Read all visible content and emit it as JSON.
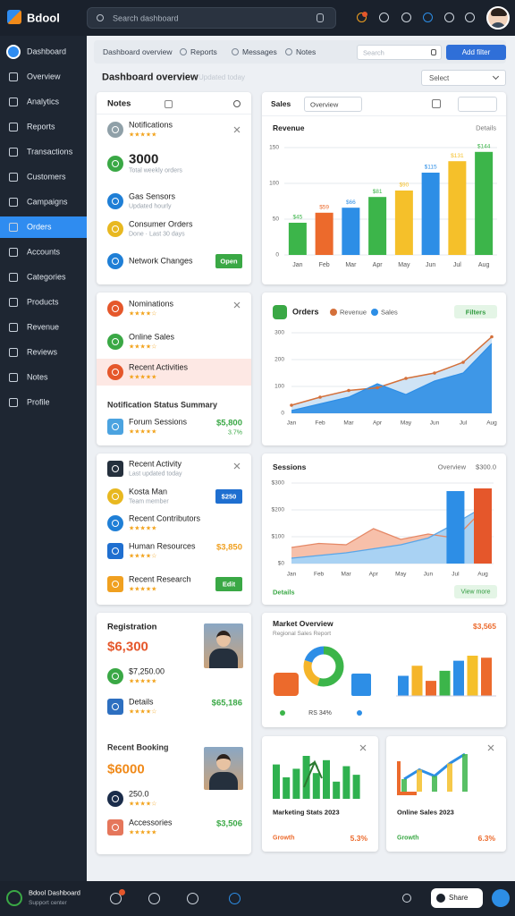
{
  "topbar": {
    "brand": "Bdool",
    "search": "Search dashboard"
  },
  "sidebar": {
    "items": [
      "Dashboard",
      "Overview",
      "Analytics",
      "Reports",
      "Transactions",
      "Customers",
      "Campaigns",
      "Orders",
      "Accounts",
      "Categories",
      "Products",
      "Revenue",
      "Reviews",
      "Notes",
      "Profile"
    ],
    "active": 7
  },
  "toolbar": {
    "tabs": [
      "Dashboard overview",
      "Reports",
      "Messages",
      "Notes"
    ],
    "input": "Search",
    "button": "Add filter",
    "select": "Select"
  },
  "heading": {
    "title": "Dashboard overview",
    "subtitle": "Updated today"
  },
  "cards": [
    {
      "header": "Notes",
      "items": [
        {
          "title": "Notifications",
          "sub": "★★★★★",
          "color": "#8fa0a8"
        },
        {
          "title": "3000",
          "sub": "Total weekly orders",
          "color": "#3aa845",
          "big": true
        },
        {
          "title": "Gas Sensors",
          "sub": "Updated hourly",
          "color": "#1f7fd6"
        },
        {
          "title": "Consumer Orders",
          "sub": "Done · Last 30 days",
          "color": "#e8b820"
        },
        {
          "title": "Network Changes",
          "badge": "Open",
          "badge_color": "#3aa845",
          "color": "#1f7fd6"
        }
      ]
    },
    {
      "items": [
        {
          "title": "Nominations",
          "sub": "★★★★☆",
          "color": "#e5572b"
        },
        {
          "title": "Online Sales",
          "sub": "★★★★☆",
          "color": "#3aa845"
        },
        {
          "title": "Recent Activities",
          "sub": "★★★★★",
          "color": "#e5572b",
          "highlight": true
        }
      ],
      "section": "Notification Status Summary",
      "items2": [
        {
          "title": "Forum Sessions",
          "sub": "★★★★★",
          "value": "$5,800",
          "value2": "3.7%",
          "value_color": "#3aa845",
          "color": "#4ba3e0",
          "square": true
        }
      ]
    },
    {
      "items": [
        {
          "title": "Recent Activity",
          "sub": "Last updated today",
          "color": "#25303d",
          "square": true
        },
        {
          "title": "Kosta Man",
          "sub": "Team member",
          "badge": "$250",
          "badge_color": "#1f6fd0",
          "color": "#e8b820"
        },
        {
          "title": "Recent Contributors",
          "sub": "★★★★★",
          "color": "#1f7fd6"
        },
        {
          "title": "Human Resources",
          "sub": "★★★★☆",
          "value": "$3,850",
          "value_color": "#f0a020",
          "color": "#1f6fd0",
          "square": true
        },
        {
          "title": "Recent Research",
          "sub": "★★★★★",
          "badge": "Edit",
          "badge_color": "#3aa845",
          "color": "#f0a020",
          "square": true
        }
      ]
    },
    {
      "header": "Registration",
      "items": [
        {
          "title": "$6,300",
          "big": true,
          "text_color": "#e5572b"
        },
        {
          "title": "$7,250.00",
          "sub": "★★★★★",
          "color": "#3aa845"
        },
        {
          "title": "Details",
          "sub": "★★★★☆",
          "value": "$65,186",
          "value_color": "#3aa845",
          "color": "#2d6fc0",
          "square": true
        }
      ],
      "section": "Recent Booking",
      "items2": [
        {
          "title": "$6000",
          "big": true,
          "text_color": "#f08a1a"
        },
        {
          "title": "250.0",
          "sub": "★★★★☆",
          "color": "#1a2c4a"
        },
        {
          "title": "Accessories",
          "sub": "★★★★★",
          "value": "$3,506",
          "value_color": "#3aa845",
          "color": "#e5765b",
          "square": true
        }
      ]
    }
  ],
  "charts": {
    "revenue": {
      "type": "bar",
      "header": "Sales",
      "select": "Overview",
      "title": "Revenue",
      "legend": "Details",
      "categories": [
        "Jan",
        "Feb",
        "Mar",
        "Apr",
        "May",
        "Jun",
        "Jul",
        "Aug"
      ],
      "values": [
        45,
        59,
        66,
        81,
        90,
        115,
        131,
        144
      ],
      "value_labels": [
        "$45",
        "$59",
        "$66",
        "$81",
        "$90",
        "$115",
        "$131",
        "$144"
      ],
      "colors": [
        "#3cb54a",
        "#ec6a2c",
        "#2d8ee6",
        "#3cb54a",
        "#f5c02a",
        "#2d8ee6",
        "#f5c02a",
        "#3cb54a"
      ],
      "ylim": [
        0,
        150
      ],
      "yticks": [
        0,
        50,
        100,
        150
      ],
      "grid": true
    },
    "orders": {
      "type": "area",
      "title": "Orders",
      "badge": "Filters",
      "categories": [
        "Jan",
        "Feb",
        "Mar",
        "Apr",
        "May",
        "Jun",
        "Jul",
        "Aug"
      ],
      "series": [
        {
          "name": "Revenue",
          "color": "#d4703a",
          "fill": "#cfe3f5",
          "values": [
            30,
            60,
            85,
            95,
            130,
            150,
            190,
            285
          ]
        },
        {
          "name": "Sales",
          "color": "#2d8ee6",
          "fill": "#2d8ee6",
          "values": [
            10,
            35,
            60,
            110,
            70,
            120,
            150,
            260
          ]
        }
      ],
      "ylim": [
        0,
        300
      ],
      "yticks": [
        0,
        100,
        200,
        300
      ],
      "grid": true
    },
    "sessions": {
      "type": "combo",
      "title": "Sessions",
      "legend": "Overview",
      "total": "$300.0",
      "footer": "Details",
      "button": "View more",
      "categories": [
        "Jan",
        "Feb",
        "Mar",
        "Apr",
        "May",
        "Jun",
        "Jul",
        "Aug"
      ],
      "series": [
        {
          "kind": "area",
          "color": "#e58866",
          "fill": "#f7c0aa",
          "values": [
            60,
            75,
            70,
            130,
            90,
            110,
            95,
            200
          ]
        },
        {
          "kind": "area",
          "color": "#5aa6e8",
          "fill": "#a9d2f3",
          "values": [
            20,
            30,
            40,
            55,
            70,
            95,
            150,
            210
          ]
        },
        {
          "kind": "bar",
          "color": "#2d8ee6",
          "values": [
            null,
            null,
            null,
            null,
            null,
            null,
            270,
            null
          ]
        },
        {
          "kind": "bar",
          "color": "#e5572b",
          "values": [
            null,
            null,
            null,
            null,
            null,
            null,
            null,
            280
          ]
        }
      ],
      "ylim": [
        0,
        300
      ],
      "yticks": [
        {
          "value": 0,
          "label": "$0"
        },
        {
          "value": 100,
          "label": "$100"
        },
        {
          "value": 200,
          "label": "$200"
        },
        {
          "value": 300,
          "label": "$300"
        }
      ],
      "grid": true
    },
    "market": {
      "type": "mixed",
      "title": "Market Overview",
      "subtitle": "Regional Sales Report",
      "total": "$3,565",
      "note": "RS 34%",
      "donut": {
        "values": [
          55,
          25,
          20
        ],
        "colors": [
          "#3cb54a",
          "#f5b52a",
          "#2d8ee6"
        ]
      },
      "bars": {
        "values": [
          20,
          30,
          15,
          25,
          35,
          40,
          38
        ],
        "colors": [
          "#2d8ee6",
          "#f5b52a",
          "#ec6a2c",
          "#3cb54a",
          "#2d8ee6",
          "#f5c02a",
          "#ec6a2c"
        ]
      }
    },
    "marketing": {
      "type": "mini-bar",
      "title": "Marketing Stats 2023",
      "footer": "Growth",
      "value": "5.3%",
      "color": "#2fb14f",
      "values": [
        40,
        25,
        35,
        50,
        30,
        45,
        20,
        38,
        28
      ]
    },
    "online": {
      "type": "mini-line",
      "title": "Online Sales 2023",
      "footer": "Growth",
      "value": "6.3%",
      "color": "#2d8ee6",
      "values": [
        20,
        35,
        25,
        45,
        60
      ]
    }
  },
  "footer": {
    "brand": "Bdool Dashboard",
    "sub": "Support center",
    "button": "Share"
  }
}
